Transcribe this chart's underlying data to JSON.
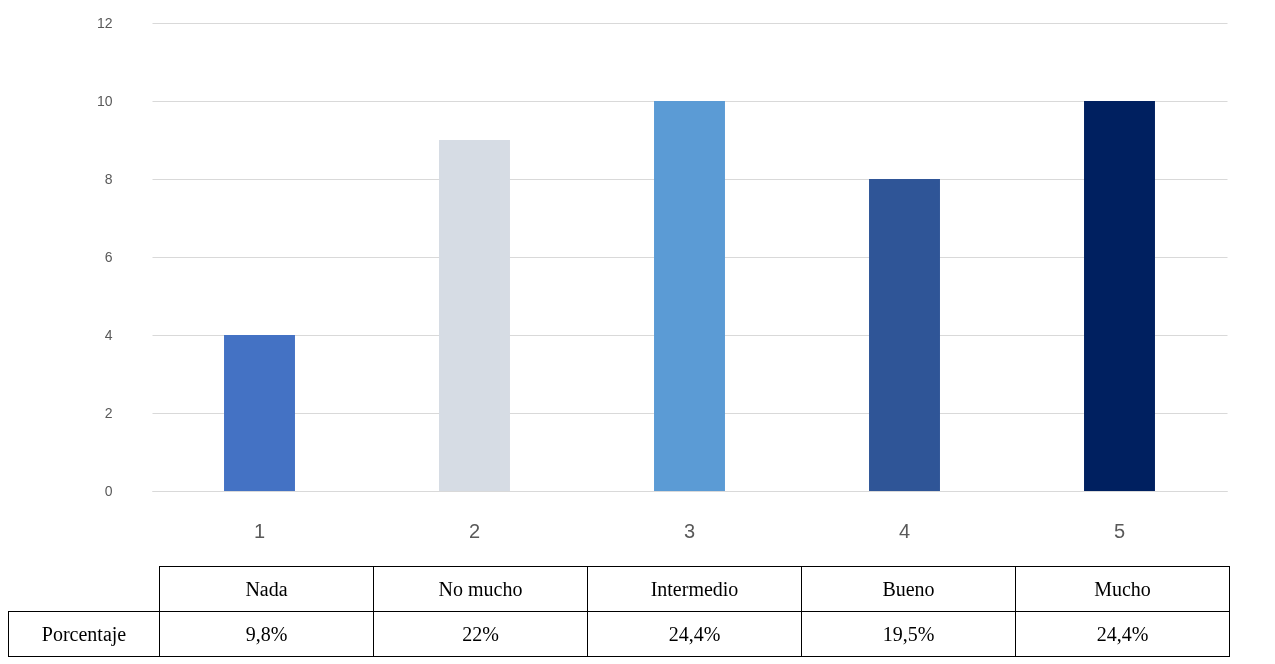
{
  "chart_data": {
    "type": "bar",
    "categories": [
      "1",
      "2",
      "3",
      "4",
      "5"
    ],
    "values": [
      4,
      9,
      10,
      8,
      10
    ],
    "colors": [
      "#4472c4",
      "#d6dce4",
      "#5b9bd5",
      "#2f5597",
      "#002060"
    ],
    "ylim": [
      0,
      12
    ],
    "yticks": [
      0,
      2,
      4,
      6,
      8,
      10,
      12
    ],
    "grid": "y",
    "legend": false,
    "annotations": [
      "Nada",
      "No mucho",
      "Intermedio",
      "Bueno",
      "Mucho",
      "Porcentaje",
      "9,8%",
      "22%",
      "24,4%",
      "19,5%",
      "24,4%"
    ]
  }
}
